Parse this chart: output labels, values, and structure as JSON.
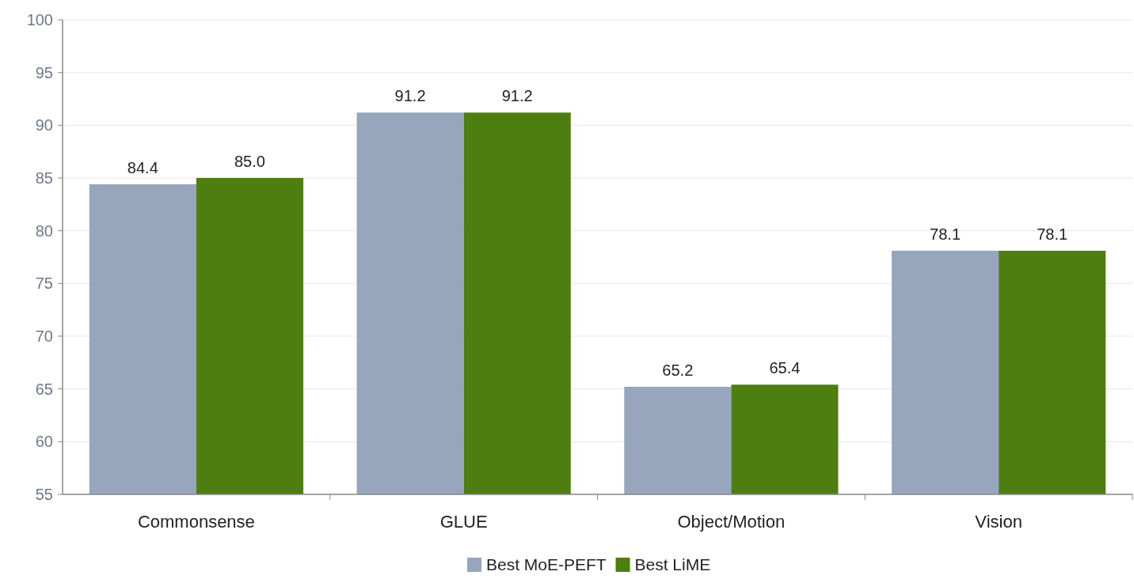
{
  "chart_data": {
    "type": "bar",
    "categories": [
      "Commonsense",
      "GLUE",
      "Object/Motion",
      "Vision"
    ],
    "series": [
      {
        "name": "Best MoE-PEFT",
        "color": "#97a6bc",
        "values": [
          84.4,
          91.2,
          65.2,
          78.1
        ],
        "value_labels": [
          "84.4",
          "91.2",
          "65.2",
          "78.1"
        ]
      },
      {
        "name": "Best LiME",
        "color": "#4e7d10",
        "values": [
          85.0,
          91.2,
          65.4,
          78.1
        ],
        "value_labels": [
          "85.0",
          "91.2",
          "65.4",
          "78.1"
        ]
      }
    ],
    "ylim": [
      55,
      100
    ],
    "yticks": [
      55,
      60,
      65,
      70,
      75,
      80,
      85,
      90,
      95,
      100
    ],
    "grid": "y",
    "legend": "bottom"
  }
}
